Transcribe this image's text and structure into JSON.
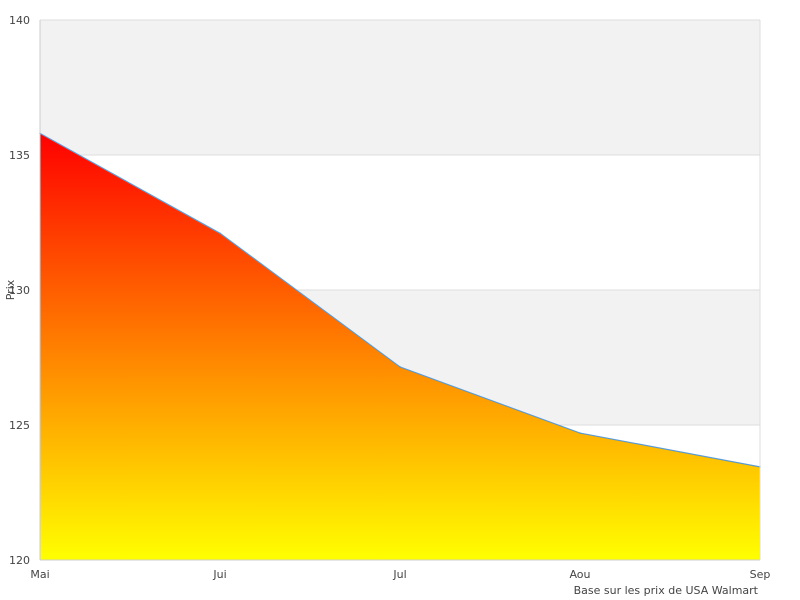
{
  "chart_data": {
    "type": "area",
    "x": [
      "Mai",
      "Jui",
      "Jul",
      "Aou",
      "Sep"
    ],
    "series": [
      {
        "values": [
          135.8,
          132.1,
          127.15,
          124.7,
          123.45
        ]
      }
    ],
    "title": "",
    "xlabel": "",
    "ylabel": "Prix",
    "ylim": [
      120,
      140
    ],
    "yticks": [
      120,
      125,
      130,
      135,
      140
    ],
    "grid": true,
    "alternating_bands": true,
    "legend": "none",
    "fill_gradient": {
      "top": "#ff0000",
      "bottom": "#ffff00"
    },
    "line_color": "#5b9bd5",
    "band_color": "#f2f2f2",
    "note": "Base sur les prix de USA Walmart"
  }
}
